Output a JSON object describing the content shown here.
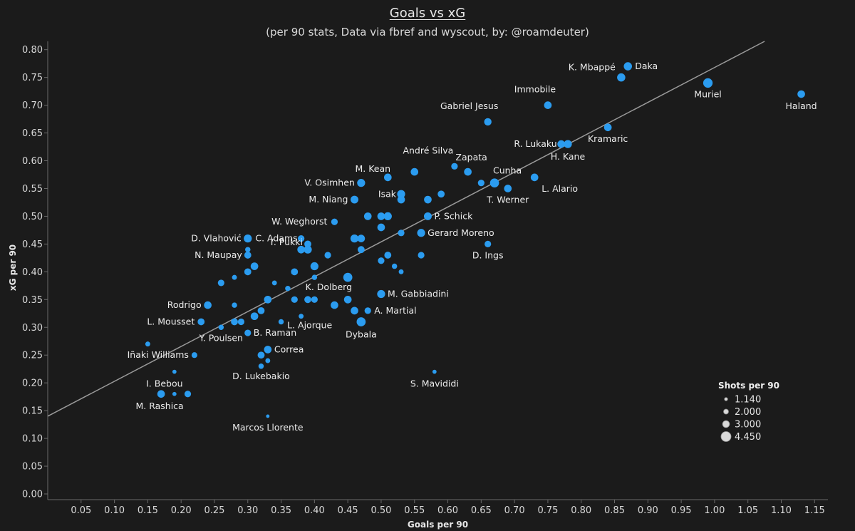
{
  "chart_data": {
    "type": "scatter",
    "title": "Goals vs xG",
    "subtitle": "(per 90 stats, Data via fbref and wyscout, by: @roamdeuter)",
    "xlabel": "Goals per 90",
    "ylabel": "xG per 90",
    "xlim": [
      0.0,
      1.17
    ],
    "ylim": [
      0.0,
      0.815
    ],
    "x_ticks": [
      "0.05",
      "0.10",
      "0.15",
      "0.20",
      "0.25",
      "0.30",
      "0.35",
      "0.40",
      "0.45",
      "0.50",
      "0.55",
      "0.60",
      "0.65",
      "0.70",
      "0.75",
      "0.80",
      "0.85",
      "0.90",
      "0.95",
      "1.00",
      "1.05",
      "1.10",
      "1.15"
    ],
    "y_ticks": [
      "0.00",
      "0.05",
      "0.10",
      "0.15",
      "0.20",
      "0.25",
      "0.30",
      "0.35",
      "0.40",
      "0.45",
      "0.50",
      "0.55",
      "0.60",
      "0.65",
      "0.70",
      "0.75",
      "0.80"
    ],
    "trend_line": {
      "x0": 0.0,
      "y0": 0.14,
      "x1": 1.075,
      "y1": 0.815
    },
    "point_color": "#2b9cf0",
    "trend_color": "#9a9a9a",
    "legend": {
      "title": "Shots per 90",
      "entries": [
        {
          "label": "1.140",
          "value": 1.14
        },
        {
          "label": "2.000",
          "value": 2.0
        },
        {
          "label": "3.000",
          "value": 3.0
        },
        {
          "label": "4.450",
          "value": 4.45
        }
      ],
      "position": "bottom-right"
    },
    "points": [
      {
        "name": "K. Mbappé",
        "x": 0.86,
        "y": 0.75,
        "shots": 3.6
      },
      {
        "name": "Daka",
        "x": 0.87,
        "y": 0.77,
        "shots": 3.6
      },
      {
        "name": "Muriel",
        "x": 0.99,
        "y": 0.74,
        "shots": 4.2
      },
      {
        "name": "Haland",
        "x": 1.13,
        "y": 0.72,
        "shots": 3.3
      },
      {
        "name": "Immobile",
        "x": 0.75,
        "y": 0.7,
        "shots": 3.3
      },
      {
        "name": "Gabriel Jesus",
        "x": 0.66,
        "y": 0.67,
        "shots": 3.2
      },
      {
        "name": "Kramaric",
        "x": 0.84,
        "y": 0.66,
        "shots": 3.3
      },
      {
        "name": "R. Lukaku",
        "x": 0.77,
        "y": 0.63,
        "shots": 3.3
      },
      {
        "name": "H. Kane",
        "x": 0.78,
        "y": 0.63,
        "shots": 3.5
      },
      {
        "name": "André Silva",
        "x": 0.61,
        "y": 0.59,
        "shots": 2.8
      },
      {
        "name": "Zapata",
        "x": 0.63,
        "y": 0.58,
        "shots": 3.3
      },
      {
        "name": "M. Kean",
        "x": 0.51,
        "y": 0.57,
        "shots": 3.3
      },
      {
        "name": "Cunha",
        "x": 0.67,
        "y": 0.56,
        "shots": 4.0
      },
      {
        "name": "L. Alario",
        "x": 0.73,
        "y": 0.57,
        "shots": 3.3
      },
      {
        "name": "T. Werner",
        "x": 0.69,
        "y": 0.55,
        "shots": 3.3
      },
      {
        "name": "V. Osimhen",
        "x": 0.47,
        "y": 0.56,
        "shots": 3.5
      },
      {
        "name": "Isak",
        "x": 0.53,
        "y": 0.54,
        "shots": 3.5
      },
      {
        "name": "M. Niang",
        "x": 0.46,
        "y": 0.53,
        "shots": 3.4
      },
      {
        "name": "P. Schick",
        "x": 0.57,
        "y": 0.5,
        "shots": 3.4
      },
      {
        "name": "W. Weghorst",
        "x": 0.43,
        "y": 0.49,
        "shots": 2.8
      },
      {
        "name": "Gerard Moreno",
        "x": 0.56,
        "y": 0.47,
        "shots": 3.5
      },
      {
        "name": "D. Vlahović",
        "x": 0.3,
        "y": 0.46,
        "shots": 3.5
      },
      {
        "name": "C. Adams",
        "x": 0.38,
        "y": 0.46,
        "shots": 2.8
      },
      {
        "name": "D. Ings",
        "x": 0.66,
        "y": 0.45,
        "shots": 2.8
      },
      {
        "name": "N. Maupay",
        "x": 0.3,
        "y": 0.43,
        "shots": 3.0
      },
      {
        "name": "T. Pukki",
        "x": 0.39,
        "y": 0.44,
        "shots": 3.5
      },
      {
        "name": "K. Dolberg",
        "x": 0.4,
        "y": 0.39,
        "shots": 2.2
      },
      {
        "name": "M. Gabbiadini",
        "x": 0.5,
        "y": 0.36,
        "shots": 3.5
      },
      {
        "name": "Rodrigo",
        "x": 0.24,
        "y": 0.34,
        "shots": 3.3
      },
      {
        "name": "A. Martial",
        "x": 0.48,
        "y": 0.33,
        "shots": 2.8
      },
      {
        "name": "L. Mousset",
        "x": 0.23,
        "y": 0.31,
        "shots": 3.0
      },
      {
        "name": "L. Ajorque",
        "x": 0.38,
        "y": 0.32,
        "shots": 2.0
      },
      {
        "name": "Dybala",
        "x": 0.47,
        "y": 0.31,
        "shots": 4.0
      },
      {
        "name": "B. Raman",
        "x": 0.3,
        "y": 0.29,
        "shots": 2.8
      },
      {
        "name": "Y. Poulsen",
        "x": 0.26,
        "y": 0.3,
        "shots": 2.2
      },
      {
        "name": "Correa",
        "x": 0.33,
        "y": 0.26,
        "shots": 3.3
      },
      {
        "name": "Iñaki Williams",
        "x": 0.22,
        "y": 0.25,
        "shots": 2.4
      },
      {
        "name": "D. Lukebakio",
        "x": 0.32,
        "y": 0.23,
        "shots": 2.2
      },
      {
        "name": "S. Mavididi",
        "x": 0.58,
        "y": 0.22,
        "shots": 1.6
      },
      {
        "name": "I. Bebou",
        "x": 0.19,
        "y": 0.22,
        "shots": 1.6
      },
      {
        "name": "M. Rashica",
        "x": 0.17,
        "y": 0.18,
        "shots": 3.3
      },
      {
        "name": "Marcos Llorente",
        "x": 0.33,
        "y": 0.14,
        "shots": 1.3
      },
      {
        "name": "",
        "x": 0.15,
        "y": 0.27,
        "shots": 2.0
      },
      {
        "name": "",
        "x": 0.19,
        "y": 0.18,
        "shots": 1.6
      },
      {
        "name": "",
        "x": 0.21,
        "y": 0.18,
        "shots": 2.8
      },
      {
        "name": "",
        "x": 0.26,
        "y": 0.38,
        "shots": 2.8
      },
      {
        "name": "",
        "x": 0.28,
        "y": 0.39,
        "shots": 2.0
      },
      {
        "name": "",
        "x": 0.28,
        "y": 0.34,
        "shots": 2.2
      },
      {
        "name": "",
        "x": 0.28,
        "y": 0.31,
        "shots": 3.0
      },
      {
        "name": "",
        "x": 0.29,
        "y": 0.31,
        "shots": 2.8
      },
      {
        "name": "",
        "x": 0.3,
        "y": 0.4,
        "shots": 3.0
      },
      {
        "name": "",
        "x": 0.3,
        "y": 0.44,
        "shots": 2.2
      },
      {
        "name": "",
        "x": 0.31,
        "y": 0.41,
        "shots": 3.3
      },
      {
        "name": "",
        "x": 0.31,
        "y": 0.32,
        "shots": 3.3
      },
      {
        "name": "",
        "x": 0.32,
        "y": 0.33,
        "shots": 3.0
      },
      {
        "name": "",
        "x": 0.32,
        "y": 0.25,
        "shots": 3.0
      },
      {
        "name": "",
        "x": 0.33,
        "y": 0.35,
        "shots": 3.3
      },
      {
        "name": "",
        "x": 0.33,
        "y": 0.24,
        "shots": 2.0
      },
      {
        "name": "",
        "x": 0.34,
        "y": 0.38,
        "shots": 2.0
      },
      {
        "name": "",
        "x": 0.35,
        "y": 0.31,
        "shots": 2.2
      },
      {
        "name": "",
        "x": 0.36,
        "y": 0.37,
        "shots": 2.2
      },
      {
        "name": "",
        "x": 0.37,
        "y": 0.4,
        "shots": 3.0
      },
      {
        "name": "",
        "x": 0.37,
        "y": 0.35,
        "shots": 2.8
      },
      {
        "name": "",
        "x": 0.38,
        "y": 0.44,
        "shots": 3.3
      },
      {
        "name": "",
        "x": 0.39,
        "y": 0.45,
        "shots": 3.0
      },
      {
        "name": "",
        "x": 0.39,
        "y": 0.35,
        "shots": 3.0
      },
      {
        "name": "",
        "x": 0.4,
        "y": 0.41,
        "shots": 3.5
      },
      {
        "name": "",
        "x": 0.4,
        "y": 0.35,
        "shots": 2.8
      },
      {
        "name": "",
        "x": 0.42,
        "y": 0.43,
        "shots": 2.8
      },
      {
        "name": "",
        "x": 0.43,
        "y": 0.34,
        "shots": 3.3
      },
      {
        "name": "",
        "x": 0.45,
        "y": 0.39,
        "shots": 4.0
      },
      {
        "name": "",
        "x": 0.45,
        "y": 0.35,
        "shots": 3.3
      },
      {
        "name": "",
        "x": 0.46,
        "y": 0.46,
        "shots": 3.5
      },
      {
        "name": "",
        "x": 0.46,
        "y": 0.33,
        "shots": 3.3
      },
      {
        "name": "",
        "x": 0.47,
        "y": 0.46,
        "shots": 3.3
      },
      {
        "name": "",
        "x": 0.47,
        "y": 0.44,
        "shots": 3.0
      },
      {
        "name": "",
        "x": 0.48,
        "y": 0.5,
        "shots": 3.3
      },
      {
        "name": "",
        "x": 0.5,
        "y": 0.5,
        "shots": 3.3
      },
      {
        "name": "",
        "x": 0.5,
        "y": 0.48,
        "shots": 3.3
      },
      {
        "name": "",
        "x": 0.5,
        "y": 0.42,
        "shots": 2.8
      },
      {
        "name": "",
        "x": 0.51,
        "y": 0.5,
        "shots": 3.5
      },
      {
        "name": "",
        "x": 0.51,
        "y": 0.43,
        "shots": 3.0
      },
      {
        "name": "",
        "x": 0.52,
        "y": 0.41,
        "shots": 2.2
      },
      {
        "name": "",
        "x": 0.53,
        "y": 0.53,
        "shots": 3.3
      },
      {
        "name": "",
        "x": 0.53,
        "y": 0.47,
        "shots": 2.8
      },
      {
        "name": "",
        "x": 0.53,
        "y": 0.4,
        "shots": 2.0
      },
      {
        "name": "",
        "x": 0.55,
        "y": 0.58,
        "shots": 3.3
      },
      {
        "name": "",
        "x": 0.56,
        "y": 0.43,
        "shots": 2.8
      },
      {
        "name": "",
        "x": 0.57,
        "y": 0.53,
        "shots": 3.3
      },
      {
        "name": "",
        "x": 0.59,
        "y": 0.54,
        "shots": 3.0
      },
      {
        "name": "",
        "x": 0.65,
        "y": 0.56,
        "shots": 2.8
      }
    ]
  }
}
